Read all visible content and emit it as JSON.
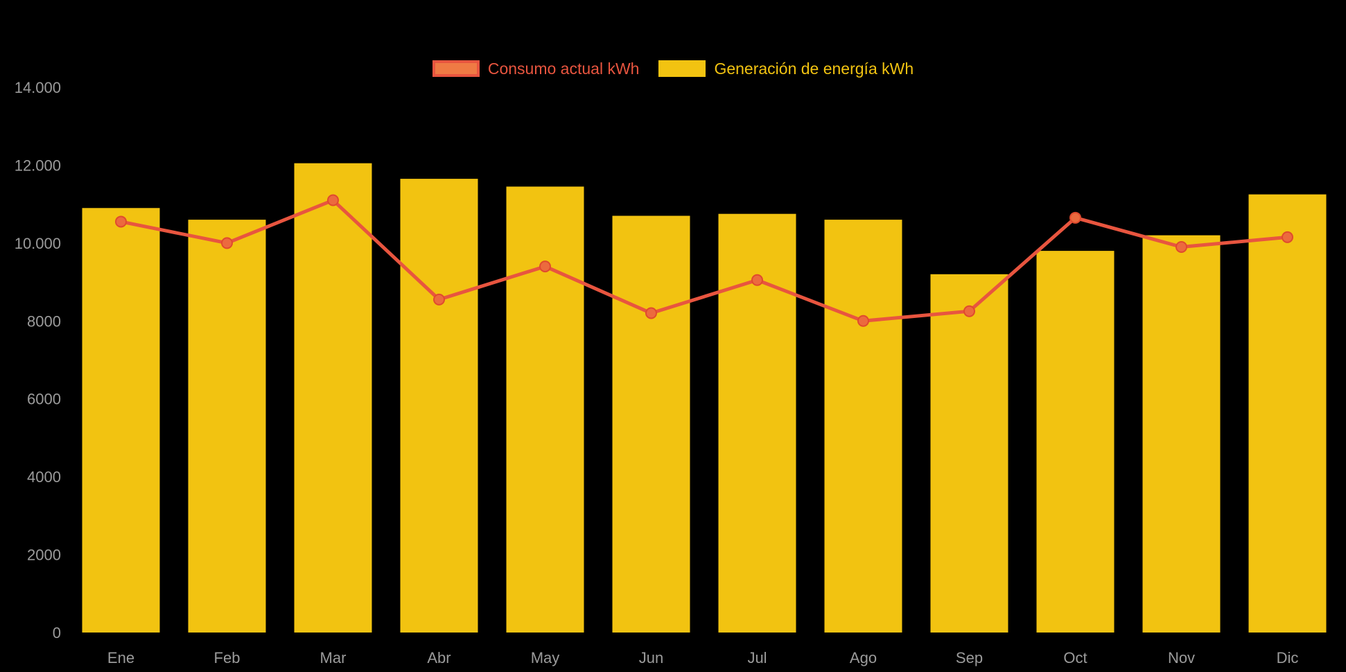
{
  "chart_data": {
    "type": "bar",
    "title": "",
    "xlabel": "",
    "ylabel": "",
    "categories": [
      "Ene",
      "Feb",
      "Mar",
      "Abr",
      "May",
      "Jun",
      "Jul",
      "Ago",
      "Sep",
      "Oct",
      "Nov",
      "Dic"
    ],
    "series": [
      {
        "name": "Consumo actual kWh",
        "type": "line",
        "color": "#E8553F",
        "legend_fill": "#EF7A44",
        "point_fill": "#EC6A3E",
        "point_stroke": "#E04A2E",
        "values": [
          10550,
          10000,
          11100,
          8550,
          9400,
          8200,
          9050,
          8000,
          8250,
          10650,
          9900,
          10150
        ]
      },
      {
        "name": "Generación de energía kWh",
        "type": "bar",
        "color": "#F2C311",
        "legend_fill": "#F2C311",
        "values": [
          10900,
          10600,
          12050,
          11650,
          11450,
          10700,
          10750,
          10600,
          9200,
          9800,
          10200,
          11250
        ]
      }
    ],
    "ylim": [
      0,
      14000
    ],
    "ytick_step": 2000,
    "ytick_labels": [
      "0",
      "2000",
      "4000",
      "6000",
      "8000",
      "10.000",
      "12.000",
      "14.000"
    ],
    "grid": false,
    "legend_position": "top"
  },
  "style": {
    "background": "#000000",
    "axis_label_color": "#9B9B9B",
    "tick_font_size": 22,
    "legend_font_size": 23
  }
}
